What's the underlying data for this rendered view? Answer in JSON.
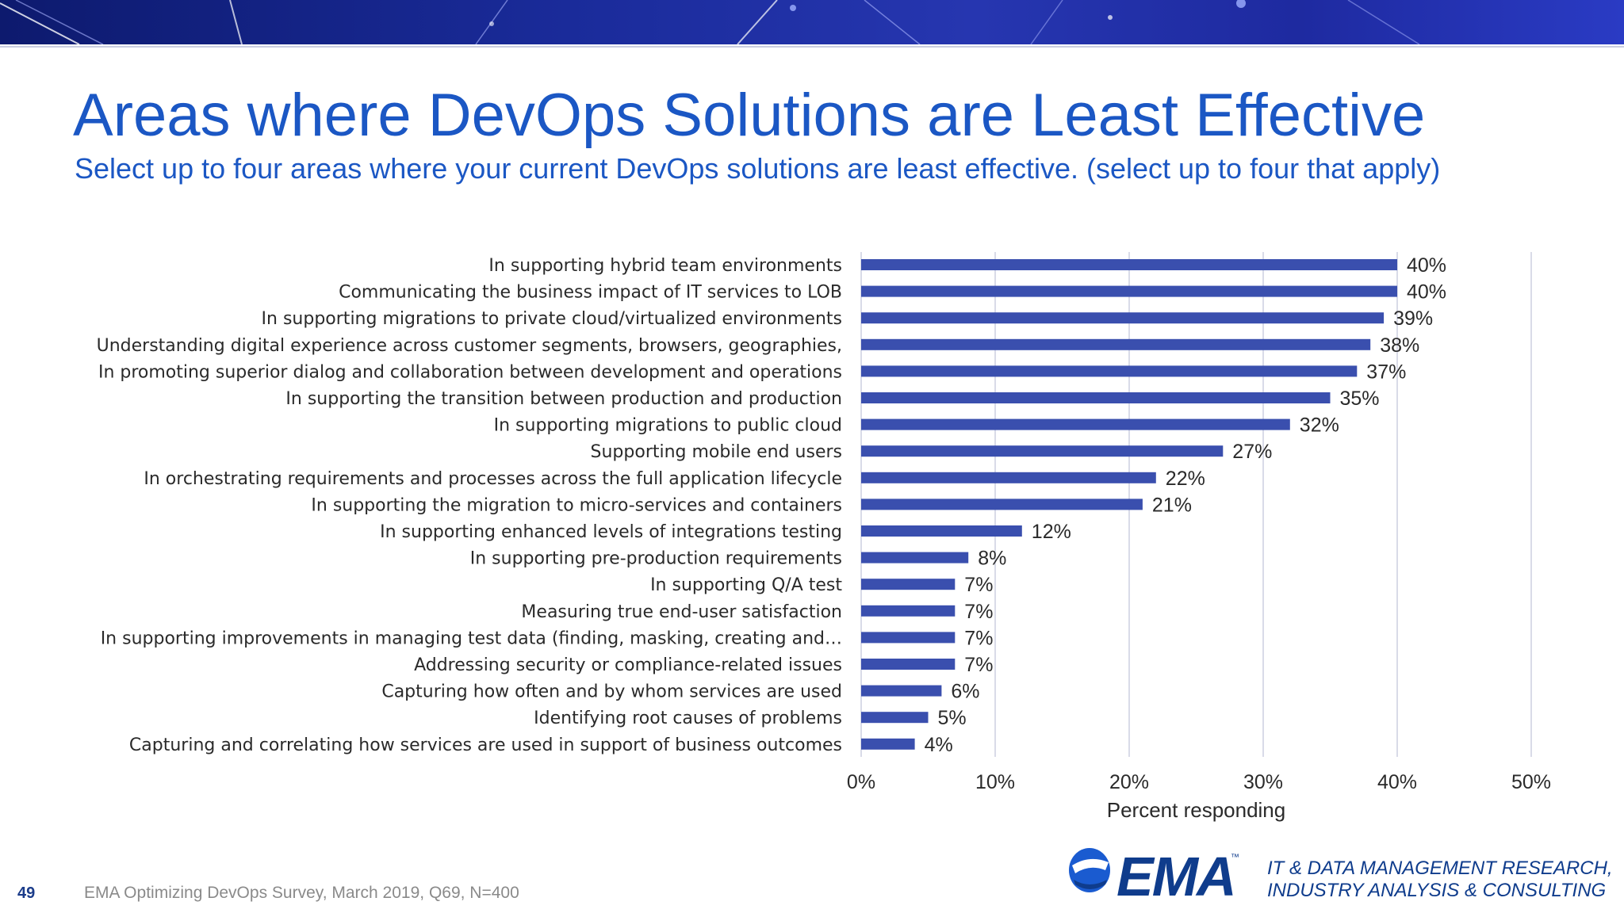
{
  "slide": {
    "title": "Areas where DevOps Solutions are Least Effective",
    "subtitle": "Select up to four areas where your current DevOps solutions are least effective. (select up to four that apply)",
    "page_number": "49",
    "source": "EMA  Optimizing DevOps Survey, March 2019, Q69, N=400"
  },
  "logo": {
    "name": "EMA",
    "tm": "™",
    "tagline_line1": "IT & DATA MANAGEMENT RESEARCH,",
    "tagline_line2": "INDUSTRY ANALYSIS & CONSULTING"
  },
  "colors": {
    "bar": "#3a4fae",
    "title": "#1b57c4",
    "grid": "#d9dbe8"
  },
  "chart_data": {
    "type": "bar",
    "orientation": "horizontal",
    "categories": [
      "In supporting hybrid team environments",
      "Communicating the business impact of IT services to LOB",
      "In supporting migrations to private cloud/virtualized environments",
      "Understanding digital experience across customer segments, browsers, geographies,",
      "In promoting superior dialog and collaboration between development and operations",
      "In supporting the transition between production and production",
      "In supporting migrations to public cloud",
      "Supporting mobile end users",
      "In orchestrating requirements and processes across the full application lifecycle",
      "In supporting the migration to micro-services and containers",
      "In supporting enhanced levels of integrations testing",
      "In supporting pre-production requirements",
      "In supporting Q/A test",
      "Measuring true end-user satisfaction",
      "In supporting improvements in managing test data (finding, masking, creating and…",
      "Addressing security or compliance-related issues",
      "Capturing how often and by whom services are used",
      "Identifying root causes of problems",
      "Capturing and correlating how services are used in support of business outcomes"
    ],
    "values": [
      40,
      40,
      39,
      38,
      37,
      35,
      32,
      27,
      22,
      21,
      12,
      8,
      7,
      7,
      7,
      7,
      6,
      5,
      4
    ],
    "data_labels": [
      "40%",
      "40%",
      "39%",
      "38%",
      "37%",
      "35%",
      "32%",
      "27%",
      "22%",
      "21%",
      "12%",
      "8%",
      "7%",
      "7%",
      "7%",
      "7%",
      "6%",
      "5%",
      "4%"
    ],
    "x_ticks": [
      "0%",
      "10%",
      "20%",
      "30%",
      "40%",
      "50%"
    ],
    "xlim": [
      0,
      50
    ],
    "xlabel": "Percent responding",
    "ylabel": "",
    "grid": true,
    "legend": "none"
  }
}
